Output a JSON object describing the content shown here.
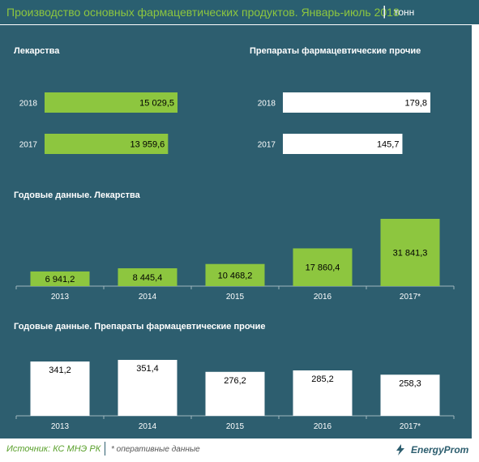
{
  "header": {
    "title": "Производство основных фармацевтических продуктов. Январь-июль 2018",
    "separator": "|",
    "unit": "тонн"
  },
  "footer": {
    "source": "Источник: КС МНЭ РК",
    "note": "* оперативные данные",
    "logo": "EnergyProm"
  },
  "colors": {
    "background": "#2d5e6f",
    "header_bg": "#2a5f70",
    "green": "#8dc63f",
    "white": "#ffffff"
  },
  "chart_data": [
    {
      "type": "bar",
      "orientation": "horizontal",
      "title": "Лекарства",
      "categories": [
        "2018",
        "2017"
      ],
      "values": [
        15029.5,
        13959.6
      ],
      "value_labels": [
        "15 029,5",
        "13 959,6"
      ],
      "color": "#8dc63f"
    },
    {
      "type": "bar",
      "orientation": "horizontal",
      "title": "Препараты  фармацевтические   прочие",
      "categories": [
        "2018",
        "2017"
      ],
      "values": [
        179.8,
        145.7
      ],
      "value_labels": [
        "179,8",
        "145,7"
      ],
      "color": "#ffffff"
    },
    {
      "type": "bar",
      "orientation": "vertical",
      "title": "Годовые данные.  Лекарства",
      "categories": [
        "2013",
        "2014",
        "2015",
        "2016",
        "2017*"
      ],
      "values": [
        6941.2,
        8445.4,
        10468.2,
        17860.4,
        31841.3
      ],
      "value_labels": [
        "6 941,2",
        "8 445,4",
        "10 468,2",
        "17 860,4",
        "31 841,3"
      ],
      "color": "#8dc63f"
    },
    {
      "type": "bar",
      "orientation": "vertical",
      "title": "Годовые данные.  Препараты  фармацевтические   прочие",
      "categories": [
        "2013",
        "2014",
        "2015",
        "2016",
        "2017*"
      ],
      "values": [
        341.2,
        351.4,
        276.2,
        285.2,
        258.3
      ],
      "value_labels": [
        "341,2",
        "351,4",
        "276,2",
        "285,2",
        "258,3"
      ],
      "color": "#ffffff"
    }
  ]
}
